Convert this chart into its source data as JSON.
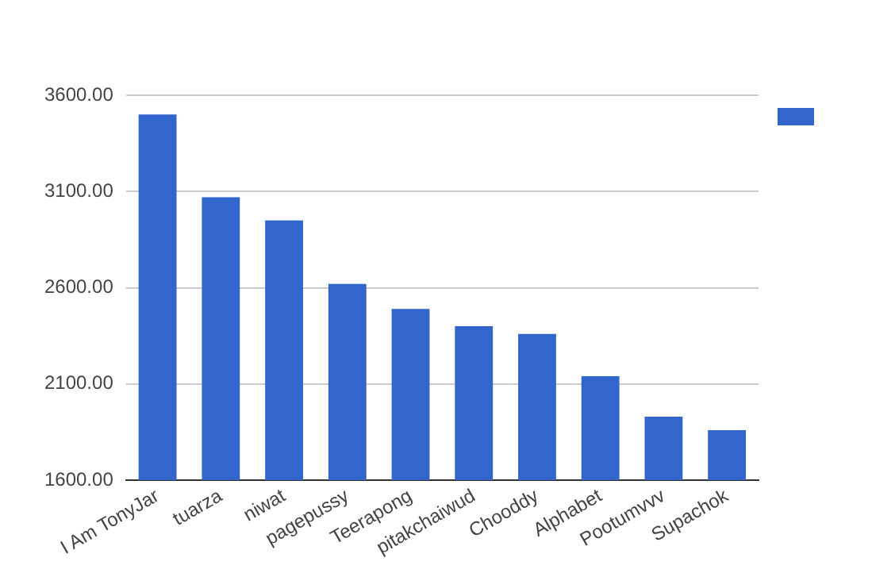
{
  "chart_data": {
    "type": "bar",
    "categories": [
      "I Am TonyJar",
      "tuarza",
      "niwat",
      "pagepussy",
      "Teerapong",
      "pitakchaiwud",
      "Chooddy",
      "Alphabet",
      "Pootumvvv",
      "Supachok"
    ],
    "series": [
      {
        "color": "#3366cc",
        "values": [
          3500,
          3070,
          2950,
          2620,
          2490,
          2400,
          2360,
          2140,
          1930,
          1860
        ]
      }
    ],
    "ylim": [
      1600,
      3600
    ],
    "yticks": [
      {
        "value": 1600,
        "label": "1600.00"
      },
      {
        "value": 2100,
        "label": "2100.00"
      },
      {
        "value": 2600,
        "label": "2600.00"
      },
      {
        "value": 3100,
        "label": "3100.00"
      },
      {
        "value": 3600,
        "label": "3600.00"
      }
    ],
    "grid": "y"
  }
}
